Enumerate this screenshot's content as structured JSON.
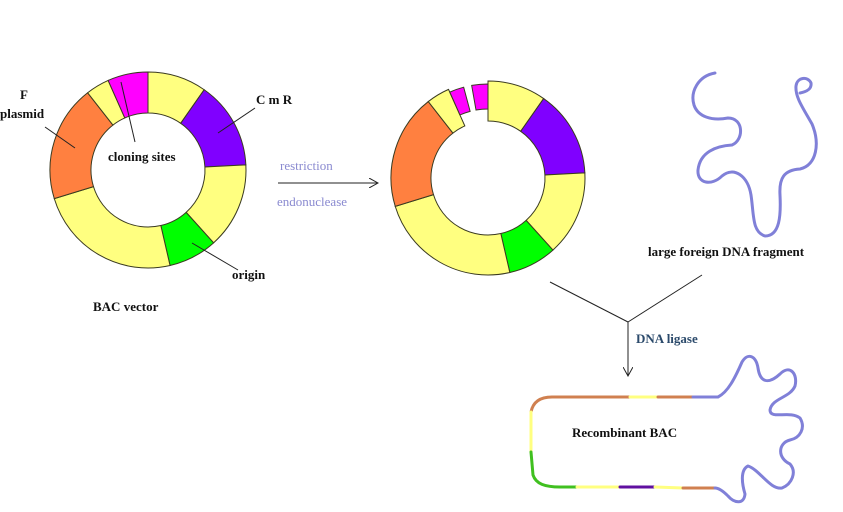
{
  "labels": {
    "f": "F",
    "plasmid": "plasmid",
    "cmr": "C m R",
    "cloning_sites": "cloning sites",
    "origin": "origin",
    "bac_vector": "BAC vector",
    "restriction": "restriction",
    "endonuclease": "endonuclease",
    "foreign_fragment": "large foreign DNA fragment",
    "dna_ligase": "DNA ligase",
    "recombinant": "Recombinant BAC"
  },
  "colors": {
    "yellow": "#ffff80",
    "purple": "#8000ff",
    "green": "#00ff00",
    "orange": "#ff8040",
    "magenta": "#ff00ff",
    "foreign_dna": "#8080d8",
    "recomb_orange": "#d08050",
    "recomb_green": "#40c020",
    "recomb_purple": "#6010a0"
  },
  "ring_segments": [
    {
      "name": "yellow-1",
      "color": "yellow",
      "from": 0,
      "to": 35
    },
    {
      "name": "cmr",
      "color": "purple",
      "from": 35,
      "to": 87
    },
    {
      "name": "yellow-2",
      "color": "yellow",
      "from": 87,
      "to": 138
    },
    {
      "name": "origin",
      "color": "green",
      "from": 138,
      "to": 167
    },
    {
      "name": "yellow-3",
      "color": "yellow",
      "from": 167,
      "to": 253
    },
    {
      "name": "f-plasmid",
      "color": "orange",
      "from": 253,
      "to": 322
    },
    {
      "name": "yellow-4",
      "color": "yellow",
      "from": 322,
      "to": 336
    },
    {
      "name": "cloning-sites",
      "color": "magenta",
      "from": 336,
      "to": 360
    }
  ]
}
